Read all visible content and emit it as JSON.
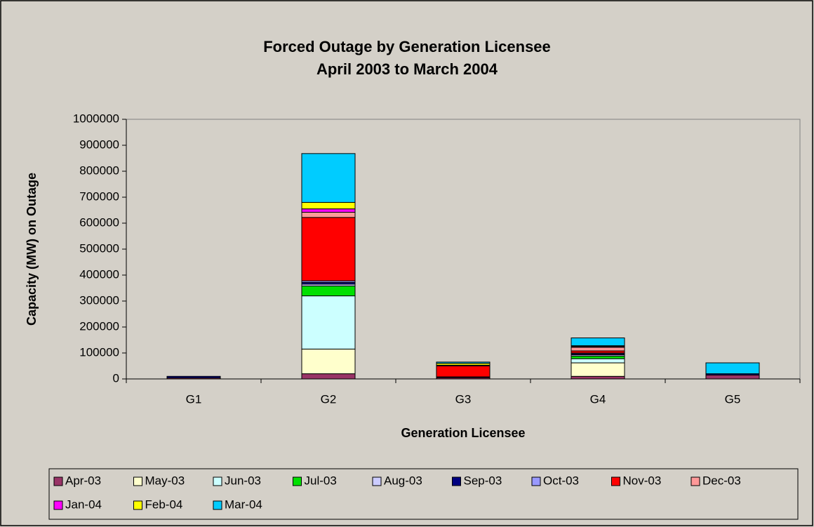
{
  "chart_data": {
    "type": "stacked_bar",
    "title": "Forced Outage by Generation Licensee",
    "subtitle": "April 2003 to March 2004",
    "x_label": "Generation Licensee",
    "y_label": "Capacity (MW) on Outage",
    "categories": [
      "G1",
      "G2",
      "G3",
      "G4",
      "G5"
    ],
    "series": [
      {
        "name": "Apr-03",
        "color": "#993366",
        "values": [
          4000,
          20000,
          5000,
          10000,
          15000
        ]
      },
      {
        "name": "May-03",
        "color": "#ffffcc",
        "values": [
          0,
          95000,
          0,
          52000,
          0
        ]
      },
      {
        "name": "Jun-03",
        "color": "#ccffff",
        "values": [
          0,
          205000,
          0,
          16000,
          0
        ]
      },
      {
        "name": "Jul-03",
        "color": "#00e000",
        "values": [
          0,
          38000,
          0,
          10000,
          0
        ]
      },
      {
        "name": "Aug-03",
        "color": "#ccccff",
        "values": [
          0,
          7000,
          0,
          5000,
          0
        ]
      },
      {
        "name": "Sep-03",
        "color": "#000080",
        "values": [
          6000,
          7000,
          3000,
          4000,
          5000
        ]
      },
      {
        "name": "Oct-03",
        "color": "#9999ff",
        "values": [
          0,
          6000,
          0,
          3000,
          0
        ]
      },
      {
        "name": "Nov-03",
        "color": "#ff0000",
        "values": [
          0,
          244000,
          42000,
          8000,
          0
        ]
      },
      {
        "name": "Dec-03",
        "color": "#ff9999",
        "values": [
          0,
          20000,
          3000,
          14000,
          0
        ]
      },
      {
        "name": "Jan-04",
        "color": "#ff00ff",
        "values": [
          0,
          13000,
          0,
          3000,
          0
        ]
      },
      {
        "name": "Feb-04",
        "color": "#ffff00",
        "values": [
          0,
          25000,
          7000,
          3000,
          0
        ]
      },
      {
        "name": "Mar-04",
        "color": "#00ccff",
        "values": [
          0,
          188000,
          5000,
          30000,
          42000
        ]
      }
    ],
    "ylim": [
      0,
      1000000
    ],
    "yticks": [
      0,
      100000,
      200000,
      300000,
      400000,
      500000,
      600000,
      700000,
      800000,
      900000,
      1000000
    ],
    "grid": false,
    "legend": "bottom"
  }
}
